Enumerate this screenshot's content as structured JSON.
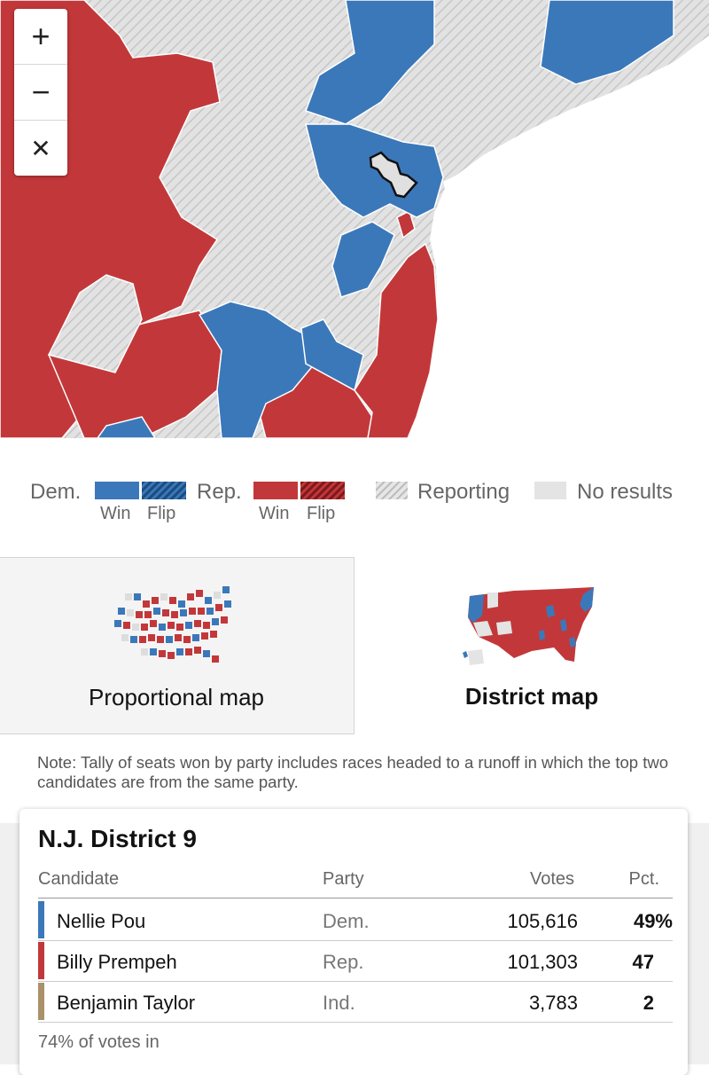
{
  "map": {
    "zoom_in_icon": "+",
    "zoom_out_icon": "−",
    "close_icon": "✕"
  },
  "colors": {
    "dem": "#3b78ba",
    "rep": "#c2383a",
    "reporting": "#d8d8d8",
    "no_results": "#e4e4e4",
    "independent": "#a9916a"
  },
  "legend": {
    "dem_label": "Dem.",
    "rep_label": "Rep.",
    "win_label": "Win",
    "flip_label": "Flip",
    "reporting_label": "Reporting",
    "no_results_label": "No results"
  },
  "toggle": {
    "proportional_label": "Proportional map",
    "district_label": "District map",
    "selected": "District map"
  },
  "note": "Note: Tally of seats won by party includes races headed to a runoff in which the top two candidates are from the same party.",
  "results": {
    "title": "N.J. District 9",
    "headers": {
      "candidate": "Candidate",
      "party": "Party",
      "votes": "Votes",
      "pct": "Pct."
    },
    "rows": [
      {
        "candidate": "Nellie Pou",
        "party": "Dem.",
        "votes": "105,616",
        "pct": "49%",
        "party_color": "#3b78ba"
      },
      {
        "candidate": "Billy Prempeh",
        "party": "Rep.",
        "votes": "101,303",
        "pct": "47",
        "party_color": "#c2383a"
      },
      {
        "candidate": "Benjamin Taylor",
        "party": "Ind.",
        "votes": "3,783",
        "pct": "2",
        "party_color": "#a9916a"
      }
    ],
    "reporting": "74% of votes in"
  }
}
